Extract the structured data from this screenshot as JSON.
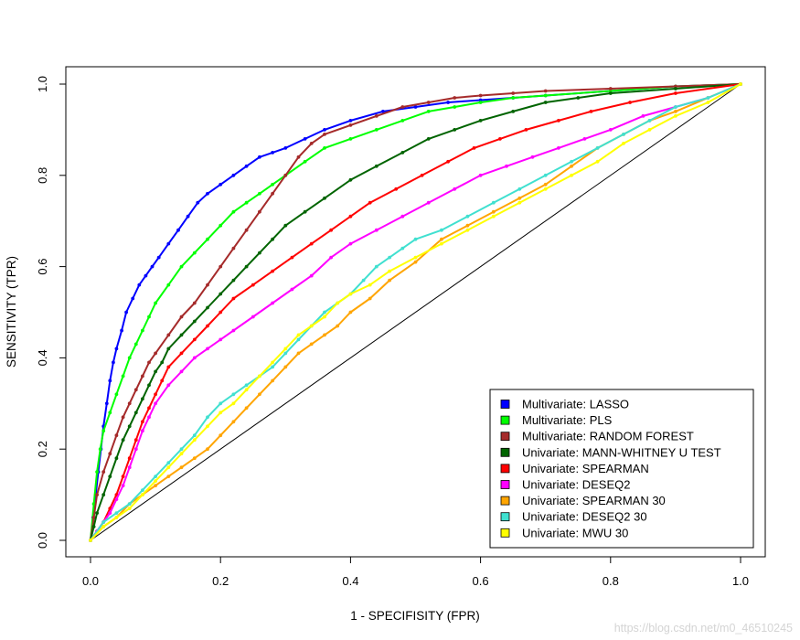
{
  "chart_data": {
    "type": "line",
    "title": "",
    "xlabel": "1 - SPECIFISITY (FPR)",
    "ylabel": "SENSITIVITY (TPR)",
    "xlim": [
      0,
      1
    ],
    "ylim": [
      0,
      1
    ],
    "xticks": [
      "0.0",
      "0.2",
      "0.4",
      "0.6",
      "0.8",
      "1.0"
    ],
    "yticks": [
      "0.0",
      "0.2",
      "0.4",
      "0.6",
      "0.8",
      "1.0"
    ],
    "legend_position": "bottom-right",
    "grid": false,
    "reference_line": {
      "x": [
        0,
        1
      ],
      "y": [
        0,
        1
      ],
      "color": "#000000"
    },
    "series": [
      {
        "name": "Multivariate: LASSO",
        "color": "#0000FF",
        "x": [
          0,
          0.004,
          0.008,
          0.012,
          0.016,
          0.02,
          0.025,
          0.03,
          0.035,
          0.04,
          0.048,
          0.055,
          0.065,
          0.075,
          0.085,
          0.095,
          0.105,
          0.12,
          0.135,
          0.15,
          0.165,
          0.18,
          0.2,
          0.22,
          0.24,
          0.26,
          0.28,
          0.3,
          0.33,
          0.36,
          0.4,
          0.45,
          0.5,
          0.55,
          0.6,
          0.65,
          0.7,
          0.8,
          0.9,
          1.0
        ],
        "y": [
          0,
          0.05,
          0.1,
          0.15,
          0.2,
          0.25,
          0.3,
          0.35,
          0.39,
          0.42,
          0.46,
          0.5,
          0.53,
          0.56,
          0.58,
          0.6,
          0.62,
          0.65,
          0.68,
          0.71,
          0.74,
          0.76,
          0.78,
          0.8,
          0.82,
          0.84,
          0.85,
          0.86,
          0.88,
          0.9,
          0.92,
          0.94,
          0.95,
          0.96,
          0.965,
          0.97,
          0.975,
          0.985,
          0.995,
          1.0
        ]
      },
      {
        "name": "Multivariate: PLS",
        "color": "#00FF00",
        "x": [
          0,
          0.005,
          0.01,
          0.015,
          0.02,
          0.03,
          0.04,
          0.05,
          0.06,
          0.07,
          0.08,
          0.09,
          0.1,
          0.12,
          0.14,
          0.16,
          0.18,
          0.2,
          0.22,
          0.24,
          0.26,
          0.28,
          0.3,
          0.33,
          0.36,
          0.4,
          0.44,
          0.48,
          0.52,
          0.56,
          0.6,
          0.65,
          0.7,
          0.8,
          0.9,
          1.0
        ],
        "y": [
          0,
          0.08,
          0.15,
          0.2,
          0.24,
          0.28,
          0.32,
          0.36,
          0.4,
          0.43,
          0.46,
          0.49,
          0.52,
          0.56,
          0.6,
          0.63,
          0.66,
          0.69,
          0.72,
          0.74,
          0.76,
          0.78,
          0.8,
          0.83,
          0.86,
          0.88,
          0.9,
          0.92,
          0.94,
          0.95,
          0.96,
          0.97,
          0.975,
          0.985,
          0.995,
          1.0
        ]
      },
      {
        "name": "Multivariate: RANDOM FOREST",
        "color": "#A52A2A",
        "x": [
          0,
          0.005,
          0.01,
          0.02,
          0.03,
          0.04,
          0.05,
          0.06,
          0.07,
          0.08,
          0.09,
          0.1,
          0.12,
          0.14,
          0.16,
          0.18,
          0.2,
          0.22,
          0.24,
          0.26,
          0.28,
          0.3,
          0.32,
          0.34,
          0.36,
          0.4,
          0.44,
          0.48,
          0.52,
          0.56,
          0.6,
          0.65,
          0.7,
          0.8,
          0.9,
          1.0
        ],
        "y": [
          0,
          0.05,
          0.1,
          0.15,
          0.19,
          0.23,
          0.27,
          0.3,
          0.33,
          0.36,
          0.39,
          0.41,
          0.45,
          0.49,
          0.52,
          0.56,
          0.6,
          0.64,
          0.68,
          0.72,
          0.76,
          0.8,
          0.84,
          0.87,
          0.89,
          0.91,
          0.93,
          0.95,
          0.96,
          0.97,
          0.975,
          0.98,
          0.985,
          0.99,
          0.995,
          1.0
        ]
      },
      {
        "name": "Univariate: MANN-WHITNEY U TEST",
        "color": "#006400",
        "x": [
          0,
          0.005,
          0.01,
          0.02,
          0.03,
          0.04,
          0.05,
          0.06,
          0.07,
          0.08,
          0.09,
          0.1,
          0.11,
          0.12,
          0.14,
          0.16,
          0.18,
          0.2,
          0.22,
          0.24,
          0.26,
          0.28,
          0.3,
          0.33,
          0.36,
          0.4,
          0.44,
          0.48,
          0.52,
          0.56,
          0.6,
          0.65,
          0.7,
          0.75,
          0.8,
          0.9,
          1.0
        ],
        "y": [
          0,
          0.03,
          0.06,
          0.1,
          0.14,
          0.18,
          0.22,
          0.25,
          0.28,
          0.31,
          0.34,
          0.37,
          0.39,
          0.42,
          0.45,
          0.48,
          0.51,
          0.54,
          0.57,
          0.6,
          0.63,
          0.66,
          0.69,
          0.72,
          0.75,
          0.79,
          0.82,
          0.85,
          0.88,
          0.9,
          0.92,
          0.94,
          0.96,
          0.97,
          0.98,
          0.99,
          1.0
        ]
      },
      {
        "name": "Univariate: SPEARMAN",
        "color": "#FF0000",
        "x": [
          0,
          0.01,
          0.02,
          0.03,
          0.04,
          0.05,
          0.06,
          0.07,
          0.08,
          0.09,
          0.1,
          0.11,
          0.12,
          0.14,
          0.16,
          0.18,
          0.2,
          0.22,
          0.25,
          0.28,
          0.31,
          0.34,
          0.37,
          0.4,
          0.43,
          0.47,
          0.51,
          0.55,
          0.59,
          0.63,
          0.67,
          0.72,
          0.77,
          0.83,
          0.9,
          1.0
        ],
        "y": [
          0,
          0.02,
          0.04,
          0.07,
          0.1,
          0.14,
          0.18,
          0.22,
          0.26,
          0.29,
          0.32,
          0.35,
          0.38,
          0.41,
          0.44,
          0.47,
          0.5,
          0.53,
          0.56,
          0.59,
          0.62,
          0.65,
          0.68,
          0.71,
          0.74,
          0.77,
          0.8,
          0.83,
          0.86,
          0.88,
          0.9,
          0.92,
          0.94,
          0.96,
          0.98,
          1.0
        ]
      },
      {
        "name": "Univariate: DESEQ2",
        "color": "#FF00FF",
        "x": [
          0,
          0.01,
          0.02,
          0.03,
          0.04,
          0.05,
          0.06,
          0.07,
          0.08,
          0.09,
          0.1,
          0.12,
          0.14,
          0.16,
          0.18,
          0.2,
          0.22,
          0.25,
          0.28,
          0.31,
          0.34,
          0.37,
          0.4,
          0.44,
          0.48,
          0.52,
          0.56,
          0.6,
          0.64,
          0.68,
          0.72,
          0.76,
          0.8,
          0.85,
          0.9,
          0.95,
          1.0
        ],
        "y": [
          0,
          0.02,
          0.04,
          0.06,
          0.09,
          0.12,
          0.16,
          0.2,
          0.24,
          0.27,
          0.3,
          0.34,
          0.37,
          0.4,
          0.42,
          0.44,
          0.46,
          0.49,
          0.52,
          0.55,
          0.58,
          0.62,
          0.65,
          0.68,
          0.71,
          0.74,
          0.77,
          0.8,
          0.82,
          0.84,
          0.86,
          0.88,
          0.9,
          0.93,
          0.95,
          0.97,
          1.0
        ]
      },
      {
        "name": "Univariate: SPEARMAN 30",
        "color": "#FFA500",
        "x": [
          0,
          0.02,
          0.04,
          0.06,
          0.08,
          0.1,
          0.12,
          0.14,
          0.16,
          0.18,
          0.2,
          0.22,
          0.24,
          0.26,
          0.28,
          0.3,
          0.32,
          0.34,
          0.36,
          0.38,
          0.4,
          0.43,
          0.46,
          0.5,
          0.54,
          0.58,
          0.62,
          0.66,
          0.7,
          0.74,
          0.78,
          0.82,
          0.86,
          0.9,
          0.95,
          1.0
        ],
        "y": [
          0,
          0.03,
          0.05,
          0.08,
          0.1,
          0.12,
          0.14,
          0.16,
          0.18,
          0.2,
          0.23,
          0.26,
          0.29,
          0.32,
          0.35,
          0.38,
          0.41,
          0.43,
          0.45,
          0.47,
          0.5,
          0.53,
          0.57,
          0.61,
          0.66,
          0.69,
          0.72,
          0.75,
          0.78,
          0.82,
          0.86,
          0.89,
          0.92,
          0.94,
          0.97,
          1.0
        ]
      },
      {
        "name": "Univariate: DESEQ2 30",
        "color": "#40E0D0",
        "x": [
          0,
          0.02,
          0.04,
          0.06,
          0.08,
          0.1,
          0.12,
          0.14,
          0.16,
          0.18,
          0.2,
          0.22,
          0.24,
          0.26,
          0.28,
          0.3,
          0.32,
          0.34,
          0.36,
          0.38,
          0.4,
          0.42,
          0.44,
          0.46,
          0.48,
          0.5,
          0.54,
          0.58,
          0.62,
          0.66,
          0.7,
          0.74,
          0.78,
          0.82,
          0.86,
          0.9,
          0.95,
          1.0
        ],
        "y": [
          0,
          0.04,
          0.06,
          0.08,
          0.11,
          0.14,
          0.17,
          0.2,
          0.23,
          0.27,
          0.3,
          0.32,
          0.34,
          0.36,
          0.38,
          0.41,
          0.44,
          0.47,
          0.5,
          0.52,
          0.54,
          0.57,
          0.6,
          0.62,
          0.64,
          0.66,
          0.68,
          0.71,
          0.74,
          0.77,
          0.8,
          0.83,
          0.86,
          0.89,
          0.92,
          0.95,
          0.97,
          1.0
        ]
      },
      {
        "name": "Univariate: MWU 30",
        "color": "#FFFF00",
        "x": [
          0,
          0.02,
          0.04,
          0.06,
          0.08,
          0.1,
          0.12,
          0.14,
          0.16,
          0.18,
          0.2,
          0.22,
          0.24,
          0.26,
          0.28,
          0.3,
          0.32,
          0.34,
          0.36,
          0.38,
          0.4,
          0.43,
          0.46,
          0.5,
          0.54,
          0.58,
          0.62,
          0.66,
          0.7,
          0.74,
          0.78,
          0.82,
          0.86,
          0.9,
          0.95,
          1.0
        ],
        "y": [
          0,
          0.03,
          0.05,
          0.07,
          0.1,
          0.13,
          0.16,
          0.19,
          0.22,
          0.25,
          0.28,
          0.3,
          0.33,
          0.36,
          0.39,
          0.42,
          0.45,
          0.47,
          0.49,
          0.52,
          0.54,
          0.56,
          0.59,
          0.62,
          0.65,
          0.68,
          0.71,
          0.74,
          0.77,
          0.8,
          0.83,
          0.87,
          0.9,
          0.93,
          0.96,
          1.0
        ]
      }
    ]
  },
  "watermark": "https://blog.csdn.net/m0_46510245"
}
